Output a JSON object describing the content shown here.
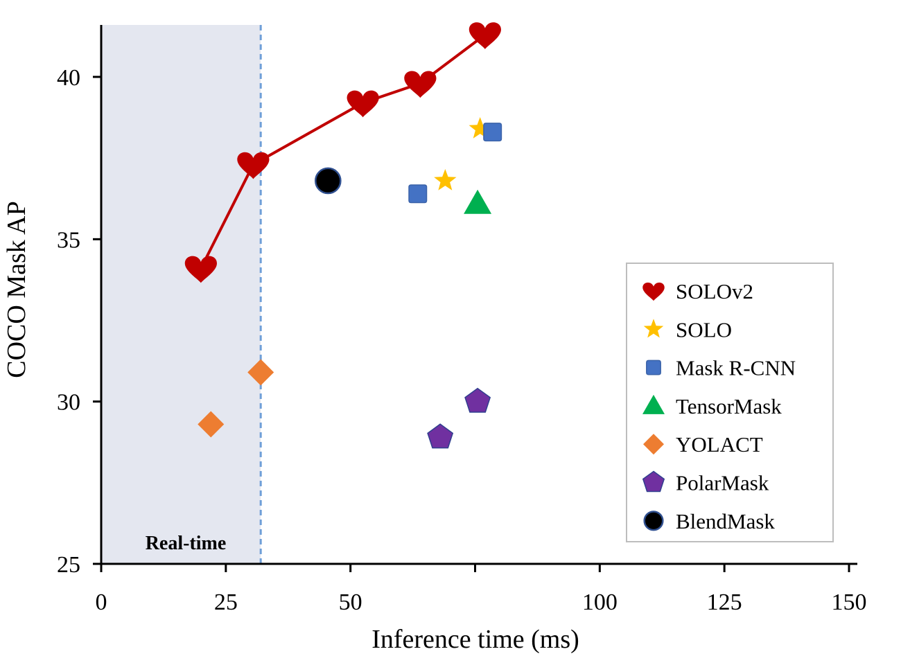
{
  "chart_data": {
    "type": "scatter",
    "xlabel": "Inference time (ms)",
    "ylabel": "COCO Mask AP",
    "xlim": [
      0,
      150
    ],
    "ylim": [
      25,
      41.6
    ],
    "xticks": [
      0,
      25,
      50,
      75,
      100,
      125,
      150
    ],
    "xtick_labels": [
      "0",
      "25",
      "50",
      "",
      "100",
      "125",
      "150"
    ],
    "yticks": [
      25,
      30,
      35,
      40
    ],
    "ytick_labels": [
      "25",
      "30",
      "35",
      "40"
    ],
    "grid": false,
    "legend_position": "bottom-right",
    "region": {
      "label": "Real-time",
      "x_start": 0,
      "x_end": 32,
      "color": "#e4e7f0",
      "line_color": "#6f9fd8"
    },
    "series": [
      {
        "name": "SOLOv2",
        "marker": "heart",
        "color": "#c00000",
        "line": true,
        "points": [
          [
            20,
            34.1
          ],
          [
            30.5,
            37.3
          ],
          [
            52.5,
            39.2
          ],
          [
            64,
            39.8
          ],
          [
            77,
            41.3
          ]
        ]
      },
      {
        "name": "SOLO",
        "marker": "star",
        "color": "#ffc000",
        "line": false,
        "points": [
          [
            69,
            36.8
          ],
          [
            76,
            38.4
          ]
        ]
      },
      {
        "name": "Mask R-CNN",
        "marker": "square",
        "color": "#4472c4",
        "line": false,
        "points": [
          [
            63.5,
            36.4
          ],
          [
            78.5,
            38.3
          ]
        ]
      },
      {
        "name": "TensorMask",
        "marker": "triangle",
        "color": "#00b050",
        "line": false,
        "points": [
          [
            75.5,
            36.1
          ]
        ]
      },
      {
        "name": "YOLACT",
        "marker": "diamond",
        "color": "#ed7d31",
        "line": false,
        "points": [
          [
            22,
            29.3
          ],
          [
            32,
            30.9
          ]
        ]
      },
      {
        "name": "PolarMask",
        "marker": "pentagon",
        "color": "#7030a0",
        "line": false,
        "points": [
          [
            68,
            28.9
          ],
          [
            75.5,
            30.0
          ]
        ]
      },
      {
        "name": "BlendMask",
        "marker": "circle",
        "color": "#000000",
        "line": false,
        "points": [
          [
            45.5,
            36.8
          ]
        ]
      }
    ]
  }
}
